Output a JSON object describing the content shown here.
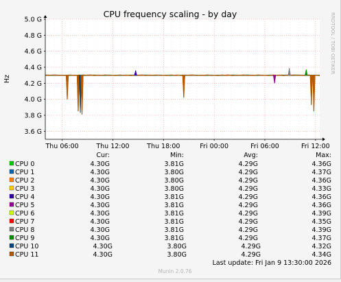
{
  "chart_data": {
    "type": "line",
    "title": "CPU frequency scaling - by day",
    "ylabel": "Hz",
    "ylim": [
      3.5,
      5.0
    ],
    "y_ticks": [
      3.6,
      3.8,
      4.0,
      4.2,
      4.4,
      4.6,
      4.8,
      5.0
    ],
    "y_tick_labels": [
      "3.6 G",
      "3.8 G",
      "4.0 G",
      "4.2 G",
      "4.4 G",
      "4.6 G",
      "4.8 G",
      "5.0 G"
    ],
    "xlim": [
      0,
      32.5
    ],
    "x_ticks": [
      6,
      12,
      18,
      24,
      30,
      36
    ],
    "x_tick_labels": [
      "Thu 06:00",
      "Thu 12:00",
      "Thu 18:00",
      "Fri 00:00",
      "Fri 06:00",
      "Fri 12:00"
    ],
    "x_ticks_at": [
      2,
      8,
      14,
      20,
      26,
      32
    ],
    "watermark": "RRDTOOL / TOBI OETIKER",
    "baseline": 4.3,
    "events": [
      {
        "series": 11,
        "x": 2.6,
        "y": 4.0
      },
      {
        "series": 11,
        "x": 3.9,
        "y": 3.85
      },
      {
        "series": 10,
        "x": 4.15,
        "y": 3.83
      },
      {
        "series": 11,
        "x": 4.35,
        "y": 3.81
      },
      {
        "series": 4,
        "x": 10.7,
        "y": 4.36
      },
      {
        "series": 11,
        "x": 16.4,
        "y": 4.02
      },
      {
        "series": 5,
        "x": 27.15,
        "y": 4.2
      },
      {
        "series": 8,
        "x": 28.9,
        "y": 4.39
      },
      {
        "series": 9,
        "x": 30.9,
        "y": 4.37
      },
      {
        "series": 11,
        "x": 31.5,
        "y": 3.93
      },
      {
        "series": 11,
        "x": 31.8,
        "y": 3.85
      }
    ],
    "legend_headers": {
      "cur": "Cur:",
      "min": "Min:",
      "avg": "Avg:",
      "max": "Max:"
    },
    "series": [
      {
        "name": "CPU 0",
        "color": "#00cc00",
        "cur": "4.30G",
        "min": "3.81G",
        "avg": "4.29G",
        "max": "4.36G"
      },
      {
        "name": "CPU 1",
        "color": "#0066b3",
        "cur": "4.30G",
        "min": "3.80G",
        "avg": "4.29G",
        "max": "4.37G"
      },
      {
        "name": "CPU 2",
        "color": "#ff8000",
        "cur": "4.30G",
        "min": "3.80G",
        "avg": "4.29G",
        "max": "4.36G"
      },
      {
        "name": "CPU 3",
        "color": "#ffcc00",
        "cur": "4.30G",
        "min": "3.80G",
        "avg": "4.29G",
        "max": "4.33G"
      },
      {
        "name": "CPU 4",
        "color": "#330099",
        "cur": "4.30G",
        "min": "3.81G",
        "avg": "4.29G",
        "max": "4.36G"
      },
      {
        "name": "CPU 5",
        "color": "#990099",
        "cur": "4.30G",
        "min": "3.81G",
        "avg": "4.29G",
        "max": "4.36G"
      },
      {
        "name": "CPU 6",
        "color": "#ccff00",
        "cur": "4.30G",
        "min": "3.81G",
        "avg": "4.29G",
        "max": "4.39G"
      },
      {
        "name": "CPU 7",
        "color": "#ff0000",
        "cur": "4.30G",
        "min": "3.81G",
        "avg": "4.29G",
        "max": "4.35G"
      },
      {
        "name": "CPU 8",
        "color": "#808080",
        "cur": "4.30G",
        "min": "3.81G",
        "avg": "4.29G",
        "max": "4.39G"
      },
      {
        "name": "CPU 9",
        "color": "#008f00",
        "cur": "4.30G",
        "min": "3.81G",
        "avg": "4.29G",
        "max": "4.37G"
      },
      {
        "name": "CPU 10",
        "color": "#00487d",
        "cur": "4.30G",
        "min": "3.80G",
        "avg": "4.29G",
        "max": "4.32G"
      },
      {
        "name": "CPU 11",
        "color": "#b35a00",
        "cur": "4.30G",
        "min": "3.80G",
        "avg": "4.29G",
        "max": "4.34G"
      }
    ],
    "footer": {
      "last_update": "Last update: Fri Jan  9 13:30:00 2026",
      "generator": "Munin 2.0.76"
    }
  }
}
